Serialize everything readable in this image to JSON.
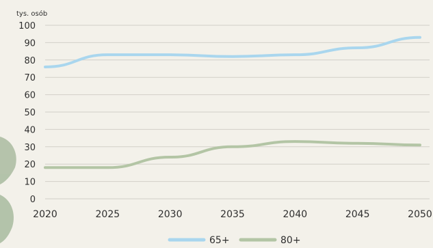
{
  "chart_data": {
    "type": "line",
    "unit_label": "tys. osób",
    "x": [
      2020,
      2025,
      2030,
      2035,
      2040,
      2045,
      2050
    ],
    "x_tick_labels": [
      "2020",
      "2025",
      "2030",
      "2035",
      "2040",
      "2045",
      "2050"
    ],
    "y_tick_labels": [
      "0",
      "10",
      "20",
      "30",
      "40",
      "50",
      "60",
      "70",
      "80",
      "90",
      "100"
    ],
    "ylim": [
      0,
      100
    ],
    "grid": true,
    "legend_placement": "bottom",
    "series": [
      {
        "name": "65+",
        "color": "#a9d6ee",
        "values": [
          76,
          83,
          83,
          82,
          83,
          87,
          93
        ]
      },
      {
        "name": "80+",
        "color": "#b3c5a5",
        "values": [
          18,
          18,
          24,
          30,
          33,
          32,
          31
        ]
      }
    ]
  }
}
